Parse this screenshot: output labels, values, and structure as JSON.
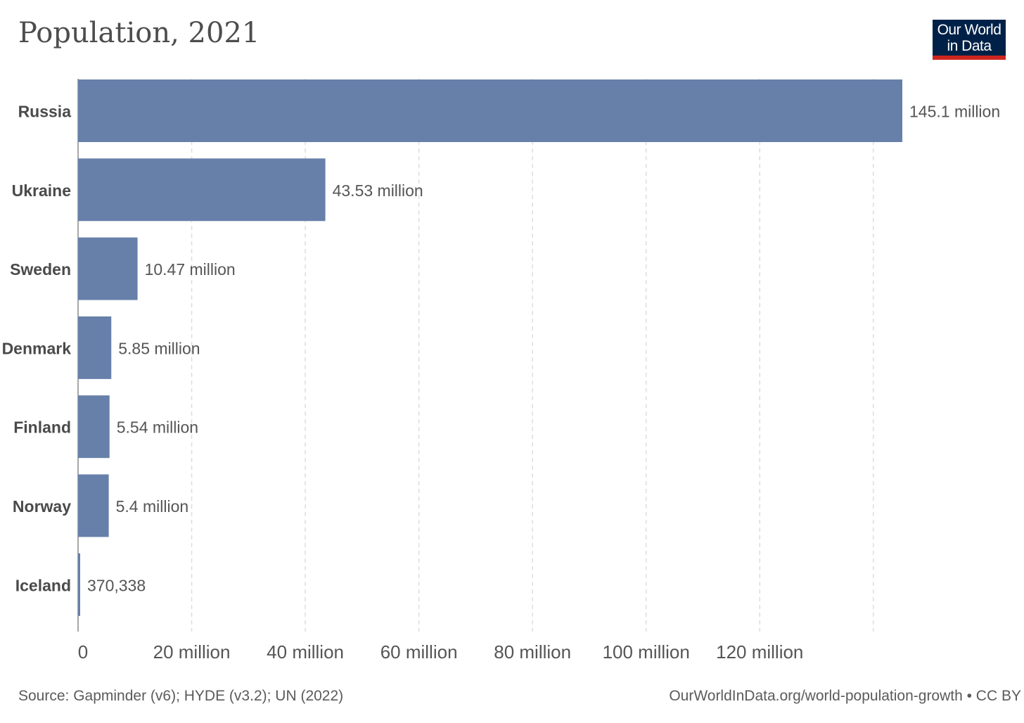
{
  "title": "Population, 2021",
  "logo": {
    "line1": "Our World",
    "line2": "in Data"
  },
  "footer": {
    "source": "Source: Gapminder (v6); HYDE (v3.2); UN (2022)",
    "url": "OurWorldInData.org/world-population-growth • CC BY"
  },
  "colors": {
    "bar": "#6780aa",
    "grid": "#dddddd",
    "logo_bg": "#002147",
    "logo_accent": "#ce261e"
  },
  "chart_data": {
    "type": "bar",
    "orientation": "horizontal",
    "title": "Population, 2021",
    "categories": [
      "Russia",
      "Ukraine",
      "Sweden",
      "Denmark",
      "Finland",
      "Norway",
      "Iceland"
    ],
    "values": [
      145100000,
      43530000,
      10470000,
      5850000,
      5540000,
      5400000,
      370338
    ],
    "value_labels": [
      "145.1 million",
      "43.53 million",
      "10.47 million",
      "5.85 million",
      "5.54 million",
      "5.4 million",
      "370,338"
    ],
    "xlim": [
      0,
      140000000
    ],
    "x_ticks": [
      0,
      20000000,
      40000000,
      60000000,
      80000000,
      100000000,
      120000000
    ],
    "x_tick_labels": [
      "0",
      "20 million",
      "40 million",
      "60 million",
      "80 million",
      "100 million",
      "120 million"
    ],
    "grid": true,
    "grid_style": "dashed vertical"
  }
}
